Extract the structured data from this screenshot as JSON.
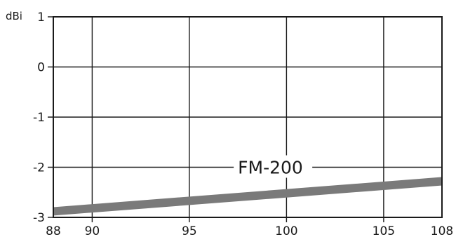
{
  "chart_data": {
    "type": "line",
    "ylabel": "dBi",
    "xlim": [
      88,
      108
    ],
    "ylim": [
      -3,
      1
    ],
    "x_ticks": [
      88,
      90,
      95,
      100,
      105,
      108
    ],
    "x_tick_labels": [
      "88",
      "90",
      "95",
      "100",
      "105",
      "108"
    ],
    "y_ticks": [
      1,
      0,
      -1,
      -2,
      -3
    ],
    "y_tick_labels": [
      "1",
      "0",
      "-1",
      "-2",
      "-3"
    ],
    "grid": true,
    "series": [
      {
        "name": "FM-200",
        "x": [
          88,
          108
        ],
        "y": [
          -2.88,
          -2.28
        ]
      }
    ],
    "annotations": [
      {
        "text": "FM-200",
        "x": 97.5,
        "y": -2.0
      }
    ],
    "colors": {
      "series": "#7a7a7a",
      "axis": "#1a1a1a",
      "grid": "#1a1a1a",
      "background": "#ffffff"
    }
  }
}
